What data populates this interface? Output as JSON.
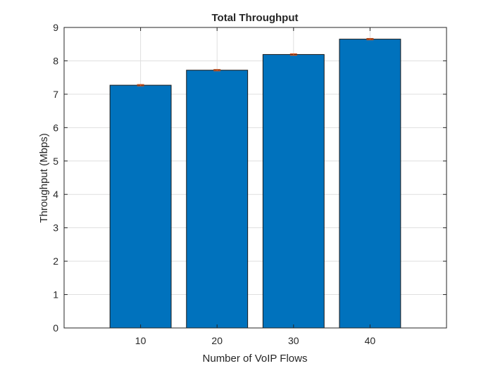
{
  "chart_data": {
    "type": "bar",
    "title": "Total Throughput",
    "xlabel": "Number of VoIP Flows",
    "ylabel": "Throughput (Mbps)",
    "categories": [
      "10",
      "20",
      "30",
      "40"
    ],
    "x": [
      10,
      20,
      30,
      40
    ],
    "values": [
      7.27,
      7.72,
      8.19,
      8.65
    ],
    "error": [
      0.02,
      0.02,
      0.02,
      0.02
    ],
    "xlim": [
      0,
      50
    ],
    "ylim": [
      0,
      9
    ],
    "yticks": [
      0,
      1,
      2,
      3,
      4,
      5,
      6,
      7,
      8,
      9
    ],
    "grid": true,
    "legend": "none",
    "colors": {
      "bar": "#0072BD",
      "bar_edge": "#1a1a1a",
      "error": "#D95319",
      "grid": "#dfdfdf",
      "axis": "#262626"
    }
  }
}
